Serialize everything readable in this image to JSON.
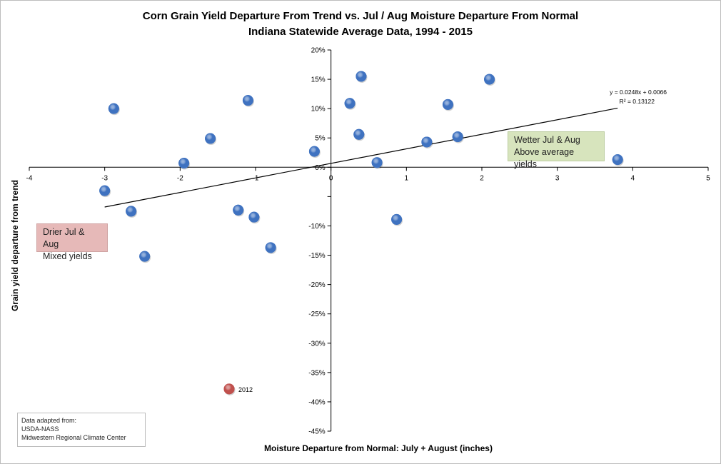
{
  "chart_data": {
    "type": "scatter",
    "title": "Corn Grain Yield Departure From Trend vs. Jul / Aug Moisture Departure From Normal",
    "subtitle": "Indiana Statewide Average Data, 1994 - 2015",
    "xlabel": "Moisture Departure from Normal: July + August (inches)",
    "ylabel": "Grain yield departure from trend",
    "xlim": [
      -4,
      5
    ],
    "ylim": [
      -0.45,
      0.2
    ],
    "x_ticks": [
      -4,
      -3,
      -2,
      -1,
      0,
      1,
      2,
      3,
      4,
      5
    ],
    "x_tick_labels": [
      "-4",
      "-3",
      "-2",
      "-1",
      "0",
      "1",
      "2",
      "3",
      "4",
      "5"
    ],
    "y_ticks": [
      0.2,
      0.15,
      0.1,
      0.05,
      0,
      -0.05,
      -0.1,
      -0.15,
      -0.2,
      -0.25,
      -0.3,
      -0.35,
      -0.4,
      -0.45
    ],
    "y_tick_labels": [
      "20%",
      "15%",
      "10%",
      "5%",
      "0%",
      "",
      "-10%",
      "-15%",
      "-20%",
      "-25%",
      "-30%",
      "-35%",
      "-40%",
      "-45%"
    ],
    "grid": false,
    "series": [
      {
        "color": "#3f72c0",
        "points": [
          {
            "x": -2.88,
            "y": 0.1
          },
          {
            "x": -1.1,
            "y": 0.114
          },
          {
            "x": -1.6,
            "y": 0.049
          },
          {
            "x": -1.95,
            "y": 0.007
          },
          {
            "x": -3.0,
            "y": -0.04
          },
          {
            "x": -2.65,
            "y": -0.075
          },
          {
            "x": -2.47,
            "y": -0.152
          },
          {
            "x": -1.23,
            "y": -0.073
          },
          {
            "x": -1.02,
            "y": -0.085
          },
          {
            "x": -0.8,
            "y": -0.137
          },
          {
            "x": -0.22,
            "y": 0.027
          },
          {
            "x": 0.25,
            "y": 0.109
          },
          {
            "x": 0.4,
            "y": 0.155
          },
          {
            "x": 0.37,
            "y": 0.056
          },
          {
            "x": 0.61,
            "y": 0.008
          },
          {
            "x": 0.87,
            "y": -0.089
          },
          {
            "x": 1.27,
            "y": 0.043
          },
          {
            "x": 1.55,
            "y": 0.107
          },
          {
            "x": 1.68,
            "y": 0.052
          },
          {
            "x": 2.1,
            "y": 0.15
          },
          {
            "x": 3.8,
            "y": 0.013
          }
        ]
      },
      {
        "color": "#c0504d",
        "points": [
          {
            "x": -1.35,
            "y": -0.378,
            "label": "2012"
          }
        ]
      }
    ],
    "trendline": {
      "slope": 0.0248,
      "intercept": 0.0066,
      "x_range": [
        -3.0,
        3.8
      ],
      "equation": "y = 0.0248x + 0.0066",
      "r_squared": "R² = 0.13122"
    },
    "annotations": {
      "drier": [
        "Drier Jul & Aug",
        "Mixed yields"
      ],
      "wetter": [
        "Wetter Jul & Aug",
        "Above average yields"
      ],
      "source": [
        "Data adapted from:",
        "USDA-NASS",
        "Midwestern Regional Climate Center"
      ]
    }
  }
}
